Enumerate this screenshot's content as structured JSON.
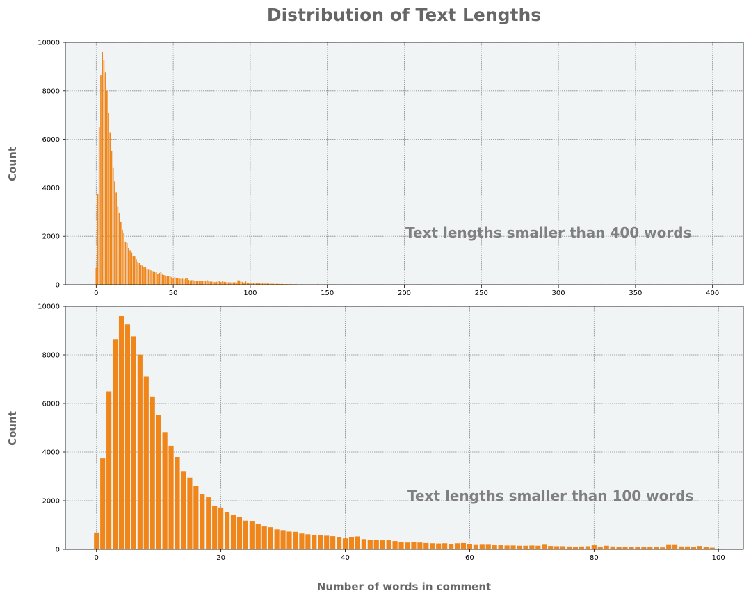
{
  "title": "Distribution of Text Lengths",
  "colors": {
    "bar": "#f0861a",
    "panel_bg": "#f0f4f5",
    "grid": "#888888",
    "text": "#666666",
    "annotation": "#808080"
  },
  "chart_data": [
    {
      "type": "bar",
      "ylabel": "Count",
      "xlabel": "",
      "annotation": "Text lengths smaller than 400 words",
      "xlim": [
        -20,
        420
      ],
      "ylim": [
        0,
        10000
      ],
      "xticks": [
        0,
        50,
        100,
        150,
        200,
        250,
        300,
        350,
        400
      ],
      "yticks": [
        0,
        2000,
        4000,
        6000,
        8000,
        10000
      ],
      "grid": true,
      "x": [
        0,
        1,
        2,
        3,
        4,
        5,
        6,
        7,
        8,
        9,
        10,
        11,
        12,
        13,
        14,
        15,
        16,
        17,
        18,
        19,
        20,
        21,
        22,
        23,
        24,
        25,
        26,
        27,
        28,
        29,
        30,
        31,
        32,
        33,
        34,
        35,
        36,
        37,
        38,
        39,
        40,
        41,
        42,
        43,
        44,
        45,
        46,
        47,
        48,
        49,
        50,
        51,
        52,
        53,
        54,
        55,
        56,
        57,
        58,
        59,
        60,
        61,
        62,
        63,
        64,
        65,
        66,
        67,
        68,
        69,
        70,
        71,
        72,
        73,
        74,
        75,
        76,
        77,
        78,
        79,
        80,
        81,
        82,
        83,
        84,
        85,
        86,
        87,
        88,
        89,
        90,
        91,
        92,
        93,
        94,
        95,
        96,
        97,
        98,
        99,
        100,
        101,
        102,
        103,
        104,
        105,
        106,
        107,
        108,
        109,
        110,
        111,
        112,
        113,
        114,
        115,
        116,
        117,
        118,
        119,
        120,
        121,
        122,
        123,
        124,
        125,
        126,
        127,
        128,
        129,
        130,
        131,
        132,
        133,
        134,
        135,
        136,
        137,
        138,
        139,
        140,
        141,
        142,
        143,
        144,
        145,
        146,
        147,
        148,
        149,
        150,
        151,
        152,
        153,
        154,
        155
      ],
      "values": [
        690,
        3740,
        6500,
        8650,
        9600,
        9250,
        8760,
        8010,
        7100,
        6290,
        5520,
        4820,
        4260,
        3800,
        3220,
        2950,
        2600,
        2270,
        2140,
        1780,
        1720,
        1520,
        1420,
        1330,
        1180,
        1170,
        1050,
        940,
        910,
        820,
        790,
        730,
        720,
        650,
        620,
        600,
        590,
        560,
        540,
        510,
        450,
        490,
        530,
        420,
        400,
        380,
        370,
        370,
        340,
        310,
        280,
        310,
        280,
        260,
        250,
        240,
        250,
        220,
        250,
        260,
        200,
        180,
        190,
        190,
        170,
        170,
        160,
        160,
        150,
        150,
        160,
        150,
        190,
        140,
        130,
        130,
        120,
        110,
        120,
        130,
        170,
        110,
        150,
        120,
        110,
        100,
        100,
        100,
        100,
        100,
        100,
        80,
        180,
        180,
        120,
        120,
        90,
        140,
        90,
        70,
        60,
        80,
        70,
        60,
        60,
        60,
        55,
        60,
        55,
        50,
        50,
        50,
        45,
        45,
        40,
        40,
        35,
        40,
        35,
        35,
        30,
        30,
        30,
        25,
        25,
        25,
        25,
        20,
        20,
        20,
        20,
        15,
        15,
        15,
        15,
        15,
        12,
        12,
        12,
        12,
        10,
        10,
        10,
        10,
        30,
        8,
        8,
        8,
        8,
        8,
        6,
        6,
        6,
        6,
        5,
        5
      ]
    },
    {
      "type": "bar",
      "ylabel": "Count",
      "xlabel": "Number of words in comment",
      "annotation": "Text lengths smaller than 100 words",
      "xlim": [
        -5,
        104
      ],
      "ylim": [
        0,
        10000
      ],
      "xticks": [
        0,
        20,
        40,
        60,
        80,
        100
      ],
      "yticks": [
        0,
        2000,
        4000,
        6000,
        8000,
        10000
      ],
      "grid": true,
      "x": [
        0,
        1,
        2,
        3,
        4,
        5,
        6,
        7,
        8,
        9,
        10,
        11,
        12,
        13,
        14,
        15,
        16,
        17,
        18,
        19,
        20,
        21,
        22,
        23,
        24,
        25,
        26,
        27,
        28,
        29,
        30,
        31,
        32,
        33,
        34,
        35,
        36,
        37,
        38,
        39,
        40,
        41,
        42,
        43,
        44,
        45,
        46,
        47,
        48,
        49,
        50,
        51,
        52,
        53,
        54,
        55,
        56,
        57,
        58,
        59,
        60,
        61,
        62,
        63,
        64,
        65,
        66,
        67,
        68,
        69,
        70,
        71,
        72,
        73,
        74,
        75,
        76,
        77,
        78,
        79,
        80,
        81,
        82,
        83,
        84,
        85,
        86,
        87,
        88,
        89,
        90,
        91,
        92,
        93,
        94,
        95,
        96,
        97,
        98,
        99
      ],
      "values": [
        690,
        3740,
        6500,
        8650,
        9600,
        9250,
        8760,
        8010,
        7100,
        6290,
        5520,
        4820,
        4260,
        3800,
        3220,
        2950,
        2600,
        2270,
        2140,
        1780,
        1720,
        1520,
        1420,
        1330,
        1180,
        1170,
        1050,
        940,
        910,
        820,
        790,
        730,
        720,
        650,
        620,
        600,
        590,
        560,
        540,
        510,
        450,
        490,
        530,
        420,
        400,
        380,
        370,
        370,
        340,
        310,
        280,
        310,
        280,
        260,
        250,
        240,
        250,
        220,
        250,
        260,
        200,
        180,
        190,
        190,
        170,
        170,
        160,
        160,
        150,
        150,
        160,
        150,
        190,
        140,
        130,
        130,
        120,
        110,
        120,
        130,
        170,
        110,
        150,
        120,
        110,
        100,
        100,
        100,
        100,
        100,
        100,
        80,
        180,
        180,
        120,
        120,
        90,
        140,
        90,
        70
      ]
    }
  ]
}
